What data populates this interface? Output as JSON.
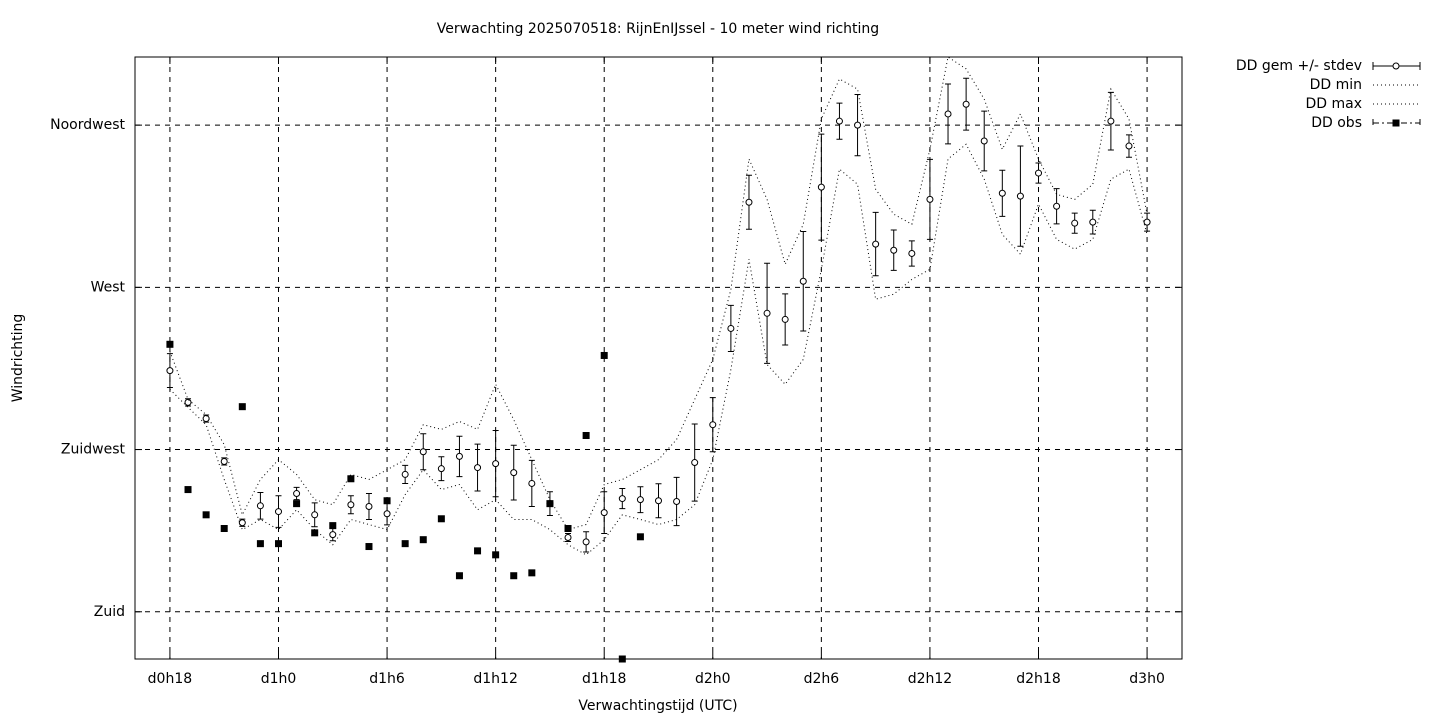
{
  "chart_data": {
    "type": "errorbar",
    "title": "Verwachting 2025070518: RijnEnIJssel - 10 meter wind richting",
    "xlabel": "Verwachtingstijd (UTC)",
    "ylabel": "Windrichting",
    "x": [
      18,
      19,
      20,
      21,
      22,
      23,
      24,
      25,
      26,
      27,
      28,
      29,
      30,
      31,
      32,
      33,
      34,
      35,
      36,
      37,
      38,
      39,
      40,
      41,
      42,
      43,
      44,
      45,
      46,
      47,
      48,
      49,
      50,
      51,
      52,
      53,
      54,
      55,
      56,
      57,
      58,
      59,
      60,
      61,
      62,
      63,
      64,
      65,
      66,
      67,
      68,
      69,
      70,
      71,
      72
    ],
    "xlim": [
      16.07,
      73.93
    ],
    "xticks": [
      {
        "value": 18,
        "label": "d0h18"
      },
      {
        "value": 24,
        "label": "d1h0"
      },
      {
        "value": 30,
        "label": "d1h6"
      },
      {
        "value": 36,
        "label": "d1h12"
      },
      {
        "value": 42,
        "label": "d1h18"
      },
      {
        "value": 48,
        "label": "d2h0"
      },
      {
        "value": 54,
        "label": "d2h6"
      },
      {
        "value": 60,
        "label": "d2h12"
      },
      {
        "value": 66,
        "label": "d2h18"
      },
      {
        "value": 72,
        "label": "d3h0"
      }
    ],
    "ylim": [
      166.9,
      333.9
    ],
    "yticks": [
      {
        "value": 180,
        "label": "Zuid"
      },
      {
        "value": 225,
        "label": "Zuidwest"
      },
      {
        "value": 270,
        "label": "West"
      },
      {
        "value": 315,
        "label": "Noordwest"
      }
    ],
    "grid": true,
    "legend": "outside-top-right",
    "series": [
      {
        "name": "DD gem +/- stdev",
        "style": "errorbars",
        "color": "#000000",
        "values": [
          246.9,
          238.1,
          233.6,
          221.7,
          204.7,
          209.4,
          207.8,
          212.8,
          206.9,
          201.4,
          209.7,
          209.2,
          207.2,
          218.1,
          224.4,
          219.7,
          223.1,
          220,
          221.1,
          218.6,
          215.6,
          210,
          200.6,
          199.4,
          207.5,
          211.4,
          211.1,
          210.8,
          210.6,
          221.4,
          231.9,
          258.6,
          293.6,
          262.8,
          261.1,
          271.7,
          297.8,
          316.1,
          315,
          282,
          280.3,
          279.4,
          294.4,
          318.1,
          320.8,
          310.6,
          296.1,
          295.3,
          301.7,
          292.5,
          287.8,
          288.1,
          316.1,
          309.2,
          288.1
        ],
        "errors": [
          4.7,
          1,
          1,
          1,
          1,
          3.7,
          4.4,
          1.7,
          3.3,
          1.7,
          2.5,
          3.6,
          3.1,
          2.5,
          5,
          3.3,
          5.6,
          6.5,
          9.2,
          7.6,
          6.4,
          3.3,
          1.1,
          2.8,
          5.8,
          2.8,
          3.6,
          4.7,
          6.7,
          10.7,
          7.5,
          6.4,
          7.5,
          13.9,
          7.1,
          13.8,
          14.7,
          5,
          8.5,
          8.8,
          5.6,
          3.5,
          11.1,
          8.3,
          7.2,
          8.3,
          6.4,
          13.9,
          2.8,
          4.9,
          2.8,
          3.3,
          8,
          3.1,
          2.5
        ]
      },
      {
        "name": "DD min",
        "style": "dotted",
        "color": "#000000",
        "values": [
          241.7,
          236.7,
          231.9,
          216.7,
          202.8,
          205.6,
          202.8,
          208.3,
          202.8,
          198.6,
          205.6,
          204.2,
          202.8,
          212.5,
          219.4,
          213.9,
          215.3,
          208.3,
          211.1,
          205.6,
          205.6,
          202.8,
          198.6,
          195.8,
          200,
          206.9,
          205.6,
          204.2,
          205.6,
          209.7,
          222.2,
          247.2,
          277.8,
          248.6,
          243.1,
          250,
          275,
          302.8,
          298.6,
          266.7,
          268.1,
          272.2,
          275,
          305.6,
          309.7,
          300,
          284.7,
          279.2,
          293.1,
          283.3,
          280.6,
          283.3,
          300,
          302.8,
          284.7
        ]
      },
      {
        "name": "DD max",
        "style": "dotted",
        "color": "#000000",
        "values": [
          252.2,
          238.9,
          234.7,
          226.4,
          206.9,
          216.7,
          222.2,
          218.1,
          211.1,
          209.7,
          218.1,
          216.7,
          219.4,
          222.2,
          231.9,
          230.6,
          232.8,
          230.6,
          243.1,
          233.3,
          222.2,
          211.1,
          202.8,
          204.2,
          215.3,
          216.7,
          219.4,
          222.2,
          227.8,
          238.9,
          250,
          269.4,
          305.6,
          294.4,
          276.4,
          287.5,
          316.7,
          327.8,
          325,
          297.2,
          290.3,
          287.5,
          308.3,
          333.9,
          330.6,
          322.2,
          308.3,
          318.1,
          305.6,
          295.8,
          294.4,
          298.6,
          325,
          316.7,
          290.3
        ]
      },
      {
        "name": "DD obs",
        "style": "points",
        "color": "#000000",
        "values": [
          254.2,
          213.9,
          206.9,
          203.1,
          236.9,
          198.9,
          198.9,
          210,
          201.9,
          203.9,
          216.9,
          198.1,
          210.8,
          198.9,
          200,
          205.8,
          190,
          196.9,
          195.8,
          190,
          190.8,
          210,
          203.1,
          228.9,
          251.1,
          166.9,
          200.8,
          null,
          null,
          null,
          null,
          null,
          null,
          null,
          null,
          null,
          null,
          null,
          null,
          null,
          null,
          null,
          null,
          null,
          null,
          null,
          null,
          null,
          null,
          null,
          null,
          null,
          null,
          null,
          null
        ]
      }
    ]
  }
}
